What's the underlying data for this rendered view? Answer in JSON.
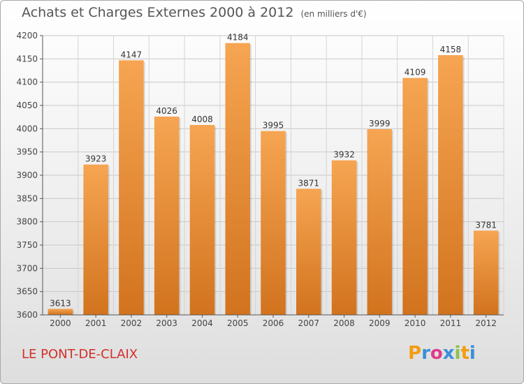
{
  "header": {
    "title": "Achats et Charges Externes 2000 à 2012",
    "subtitle": "(en milliers d'€)"
  },
  "footer": {
    "city": "LE PONT-DE-CLAIX",
    "logo": {
      "letters": [
        "P",
        "r",
        "o",
        "x",
        "i",
        "t",
        "i"
      ],
      "colors": [
        "#f39c12",
        "#3a8fd8",
        "#e03b8a",
        "#3a8fd8",
        "#8bc34a",
        "#f39c12",
        "#3a8fd8"
      ]
    }
  },
  "chart_data": {
    "type": "bar",
    "title": "Achats et Charges Externes 2000 à 2012",
    "subtitle": "(en milliers d'€)",
    "xlabel": "",
    "ylabel": "",
    "categories": [
      "2000",
      "2001",
      "2002",
      "2003",
      "2004",
      "2005",
      "2006",
      "2007",
      "2008",
      "2009",
      "2010",
      "2011",
      "2012"
    ],
    "values": [
      3613,
      3923,
      4147,
      4026,
      4008,
      4184,
      3995,
      3871,
      3932,
      3999,
      4109,
      4158,
      3781
    ],
    "ylim": [
      3600,
      4200
    ],
    "yticks": [
      3600,
      3650,
      3700,
      3750,
      3800,
      3850,
      3900,
      3950,
      4000,
      4050,
      4100,
      4150,
      4200
    ],
    "grid": true,
    "bar_color": "#f0943a"
  }
}
